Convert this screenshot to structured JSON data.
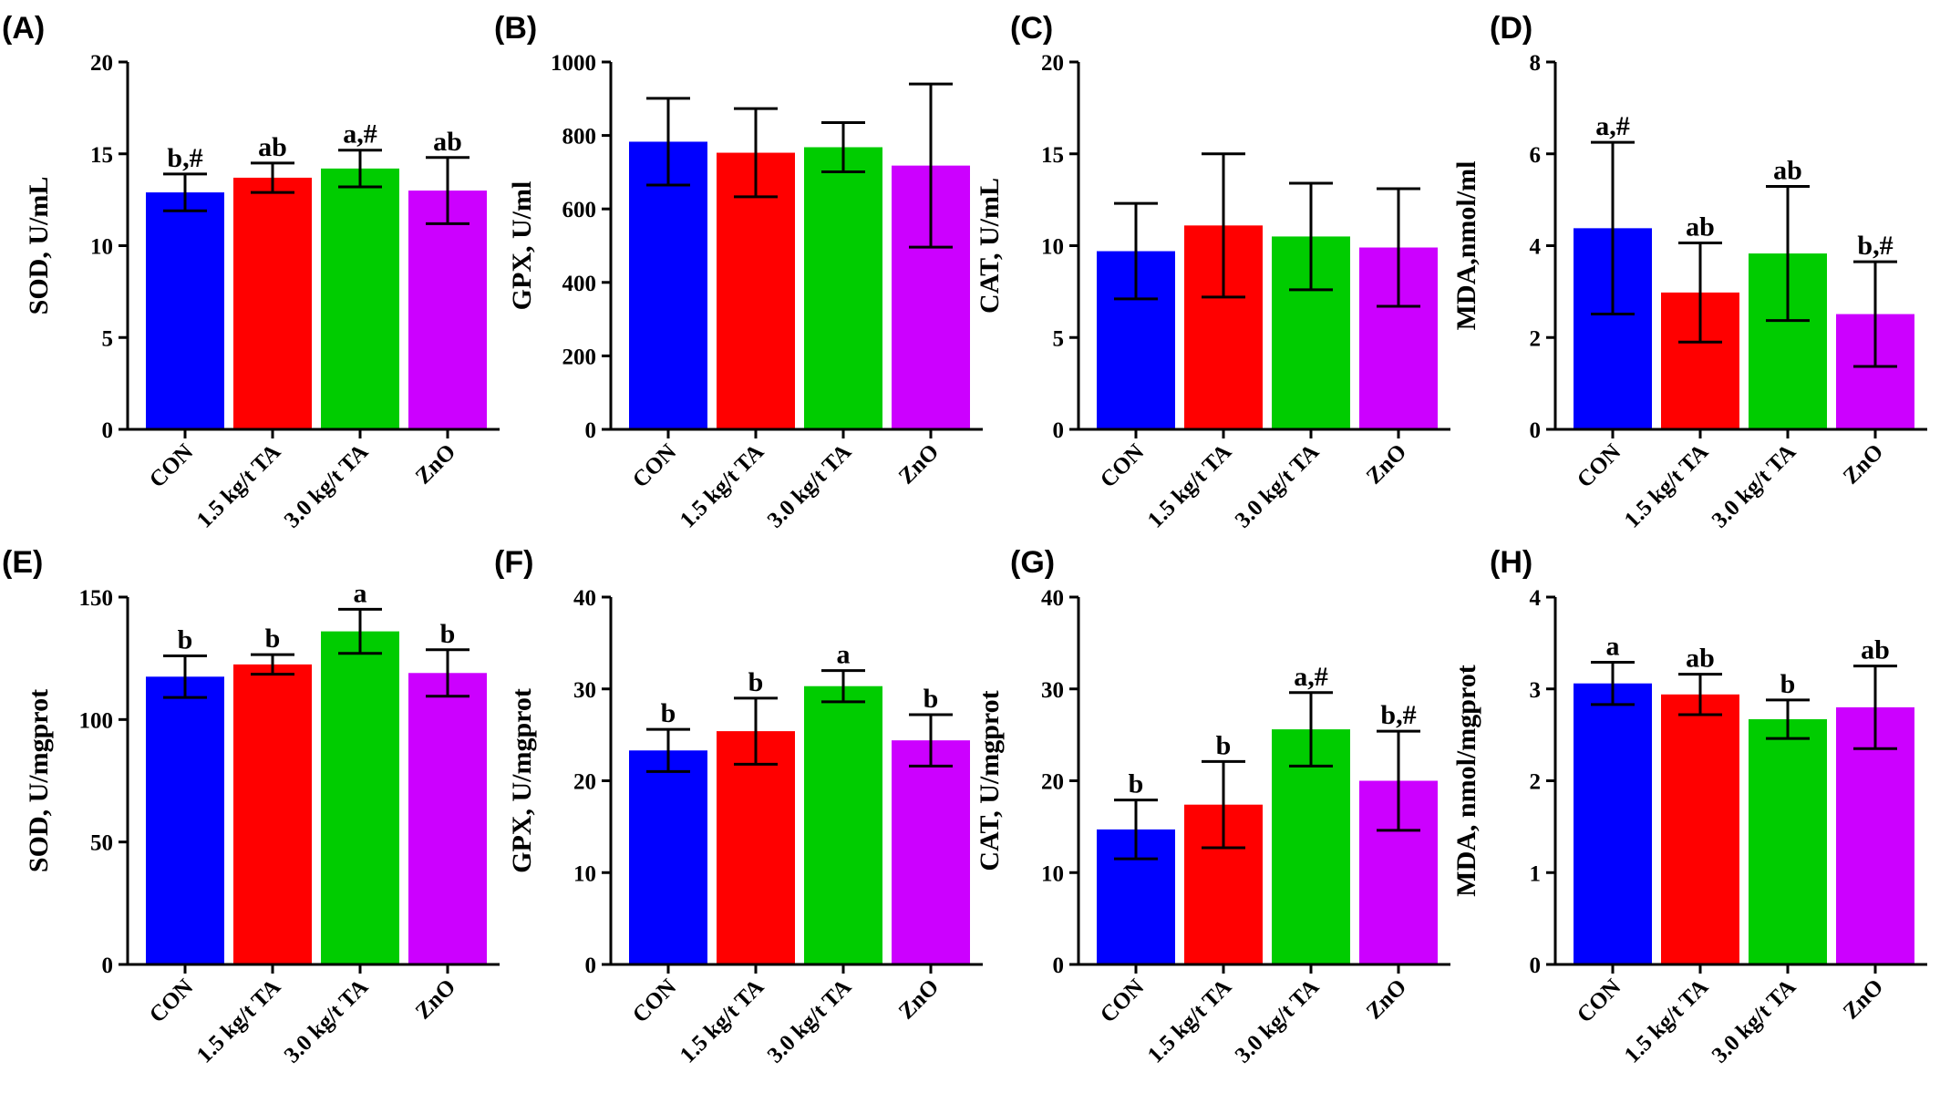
{
  "colors": [
    "#0000ff",
    "#ff0000",
    "#00cc00",
    "#cc00ff"
  ],
  "chart_data": [
    {
      "type": "bar",
      "panel": "(A)",
      "ylabel": "SOD, U/mL",
      "ylim": [
        0,
        20
      ],
      "yticks": [
        0,
        5,
        10,
        15,
        20
      ],
      "categories": [
        "CON",
        "1.5 kg/t TA",
        "3.0 kg/t TA",
        "ZnO"
      ],
      "values": [
        12.9,
        13.7,
        14.2,
        13.0
      ],
      "errors": [
        1.0,
        0.8,
        1.0,
        1.8
      ],
      "labels": [
        "b,#",
        "ab",
        "a,#",
        "ab"
      ]
    },
    {
      "type": "bar",
      "panel": "(B)",
      "ylabel": "GPX, U/ml",
      "ylim": [
        0,
        1000
      ],
      "yticks": [
        0,
        200,
        400,
        600,
        800,
        1000
      ],
      "categories": [
        "CON",
        "1.5 kg/t TA",
        "3.0 kg/t TA",
        "ZnO"
      ],
      "values": [
        783,
        753,
        768,
        718
      ],
      "errors": [
        118,
        120,
        67,
        222
      ],
      "labels": [
        "",
        "",
        "",
        ""
      ]
    },
    {
      "type": "bar",
      "panel": "(C)",
      "ylabel": "CAT, U/mL",
      "ylim": [
        0,
        20
      ],
      "yticks": [
        0,
        5,
        10,
        15,
        20
      ],
      "categories": [
        "CON",
        "1.5 kg/t TA",
        "3.0 kg/t TA",
        "ZnO"
      ],
      "values": [
        9.7,
        11.1,
        10.5,
        9.9
      ],
      "errors": [
        2.6,
        3.9,
        2.9,
        3.2
      ],
      "labels": [
        "",
        "",
        "",
        ""
      ]
    },
    {
      "type": "bar",
      "panel": "(D)",
      "ylabel": "MDA,nmol/ml",
      "ylim": [
        0,
        8
      ],
      "yticks": [
        0,
        2,
        4,
        6,
        8
      ],
      "categories": [
        "CON",
        "1.5 kg/t TA",
        "3.0 kg/t TA",
        "ZnO"
      ],
      "values": [
        4.38,
        2.98,
        3.83,
        2.51
      ],
      "errors": [
        1.87,
        1.08,
        1.46,
        1.14
      ],
      "labels": [
        "a,#",
        "ab",
        "ab",
        "b,#"
      ]
    },
    {
      "type": "bar",
      "panel": "(E)",
      "ylabel": "SOD, U/mgprot",
      "ylim": [
        0,
        150
      ],
      "yticks": [
        0,
        50,
        100,
        150
      ],
      "categories": [
        "CON",
        "1.5 kg/t TA",
        "3.0 kg/t TA",
        "ZnO"
      ],
      "values": [
        117.5,
        122.5,
        136,
        119
      ],
      "errors": [
        8.5,
        4,
        9,
        9.5
      ],
      "labels": [
        "b",
        "b",
        "a",
        "b"
      ]
    },
    {
      "type": "bar",
      "panel": "(F)",
      "ylabel": "GPX, U/mgprot",
      "ylim": [
        0,
        40
      ],
      "yticks": [
        0,
        10,
        20,
        30,
        40
      ],
      "categories": [
        "CON",
        "1.5 kg/t TA",
        "3.0 kg/t TA",
        "ZnO"
      ],
      "values": [
        23.3,
        25.4,
        30.3,
        24.4
      ],
      "errors": [
        2.3,
        3.6,
        1.7,
        2.8
      ],
      "labels": [
        "b",
        "b",
        "a",
        "b"
      ]
    },
    {
      "type": "bar",
      "panel": "(G)",
      "ylabel": "CAT, U/mgprot",
      "ylim": [
        0,
        40
      ],
      "yticks": [
        0,
        10,
        20,
        30,
        40
      ],
      "categories": [
        "CON",
        "1.5 kg/t TA",
        "3.0 kg/t TA",
        "ZnO"
      ],
      "values": [
        14.7,
        17.4,
        25.6,
        20.0
      ],
      "errors": [
        3.2,
        4.7,
        4.0,
        5.4
      ],
      "labels": [
        "b",
        "b",
        "a,#",
        "b,#"
      ]
    },
    {
      "type": "bar",
      "panel": "(H)",
      "ylabel": "MDA, nmol/mgprot",
      "ylim": [
        0,
        4
      ],
      "yticks": [
        0,
        1,
        2,
        3,
        4
      ],
      "categories": [
        "CON",
        "1.5 kg/t TA",
        "3.0 kg/t TA",
        "ZnO"
      ],
      "values": [
        3.06,
        2.94,
        2.67,
        2.8
      ],
      "errors": [
        0.23,
        0.22,
        0.21,
        0.45
      ],
      "labels": [
        "a",
        "ab",
        "b",
        "ab"
      ]
    }
  ]
}
